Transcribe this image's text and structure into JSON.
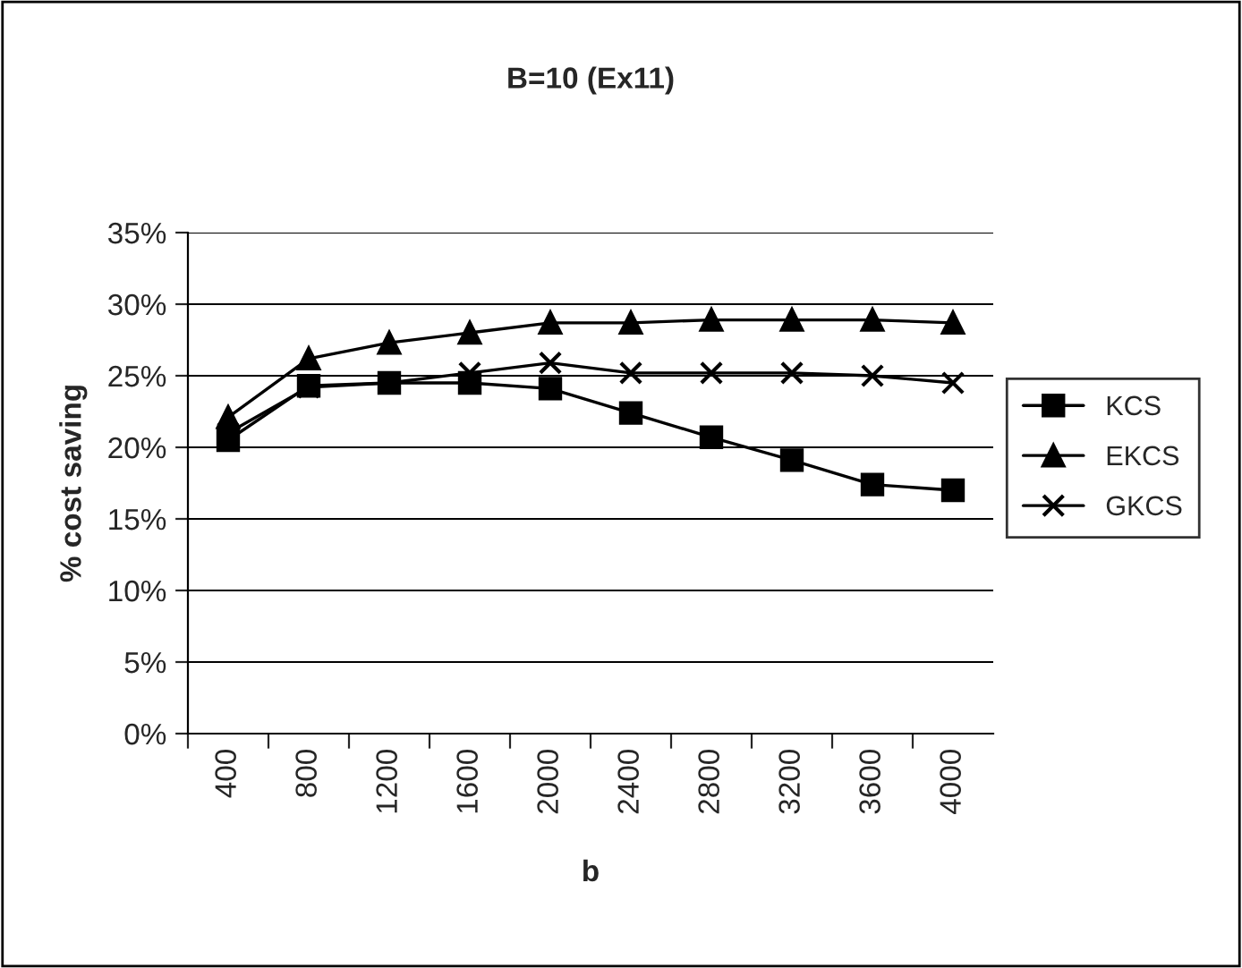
{
  "chart_data": {
    "type": "line",
    "title": "B=10 (Ex11)",
    "xlabel": "b",
    "ylabel": "% cost saving",
    "categories": [
      "400",
      "800",
      "1200",
      "1600",
      "2000",
      "2400",
      "2800",
      "3200",
      "3600",
      "4000"
    ],
    "series": [
      {
        "name": "KCS",
        "color": "#000000",
        "marker": "square",
        "values": [
          20.5,
          24.3,
          24.5,
          24.5,
          24.1,
          22.4,
          20.7,
          19.1,
          17.4,
          17.0
        ]
      },
      {
        "name": "EKCS",
        "color": "#000000",
        "marker": "triangle",
        "values": [
          22.1,
          26.2,
          27.3,
          28.0,
          28.7,
          28.7,
          28.9,
          28.9,
          28.9,
          28.7
        ]
      },
      {
        "name": "GKCS",
        "color": "#000000",
        "marker": "cross",
        "values": [
          21.0,
          24.2,
          24.5,
          25.2,
          25.9,
          25.2,
          25.2,
          25.2,
          25.0,
          24.5
        ]
      }
    ],
    "ylim": [
      0,
      35
    ],
    "yticks": [
      {
        "value": 0,
        "label": "0%"
      },
      {
        "value": 5,
        "label": "5%"
      },
      {
        "value": 10,
        "label": "10%"
      },
      {
        "value": 15,
        "label": "15%"
      },
      {
        "value": 20,
        "label": "20%"
      },
      {
        "value": 25,
        "label": "25%"
      },
      {
        "value": 30,
        "label": "30%"
      },
      {
        "value": 35,
        "label": "35%"
      }
    ],
    "grid": "y",
    "legend": "right",
    "line_style": "solid"
  }
}
